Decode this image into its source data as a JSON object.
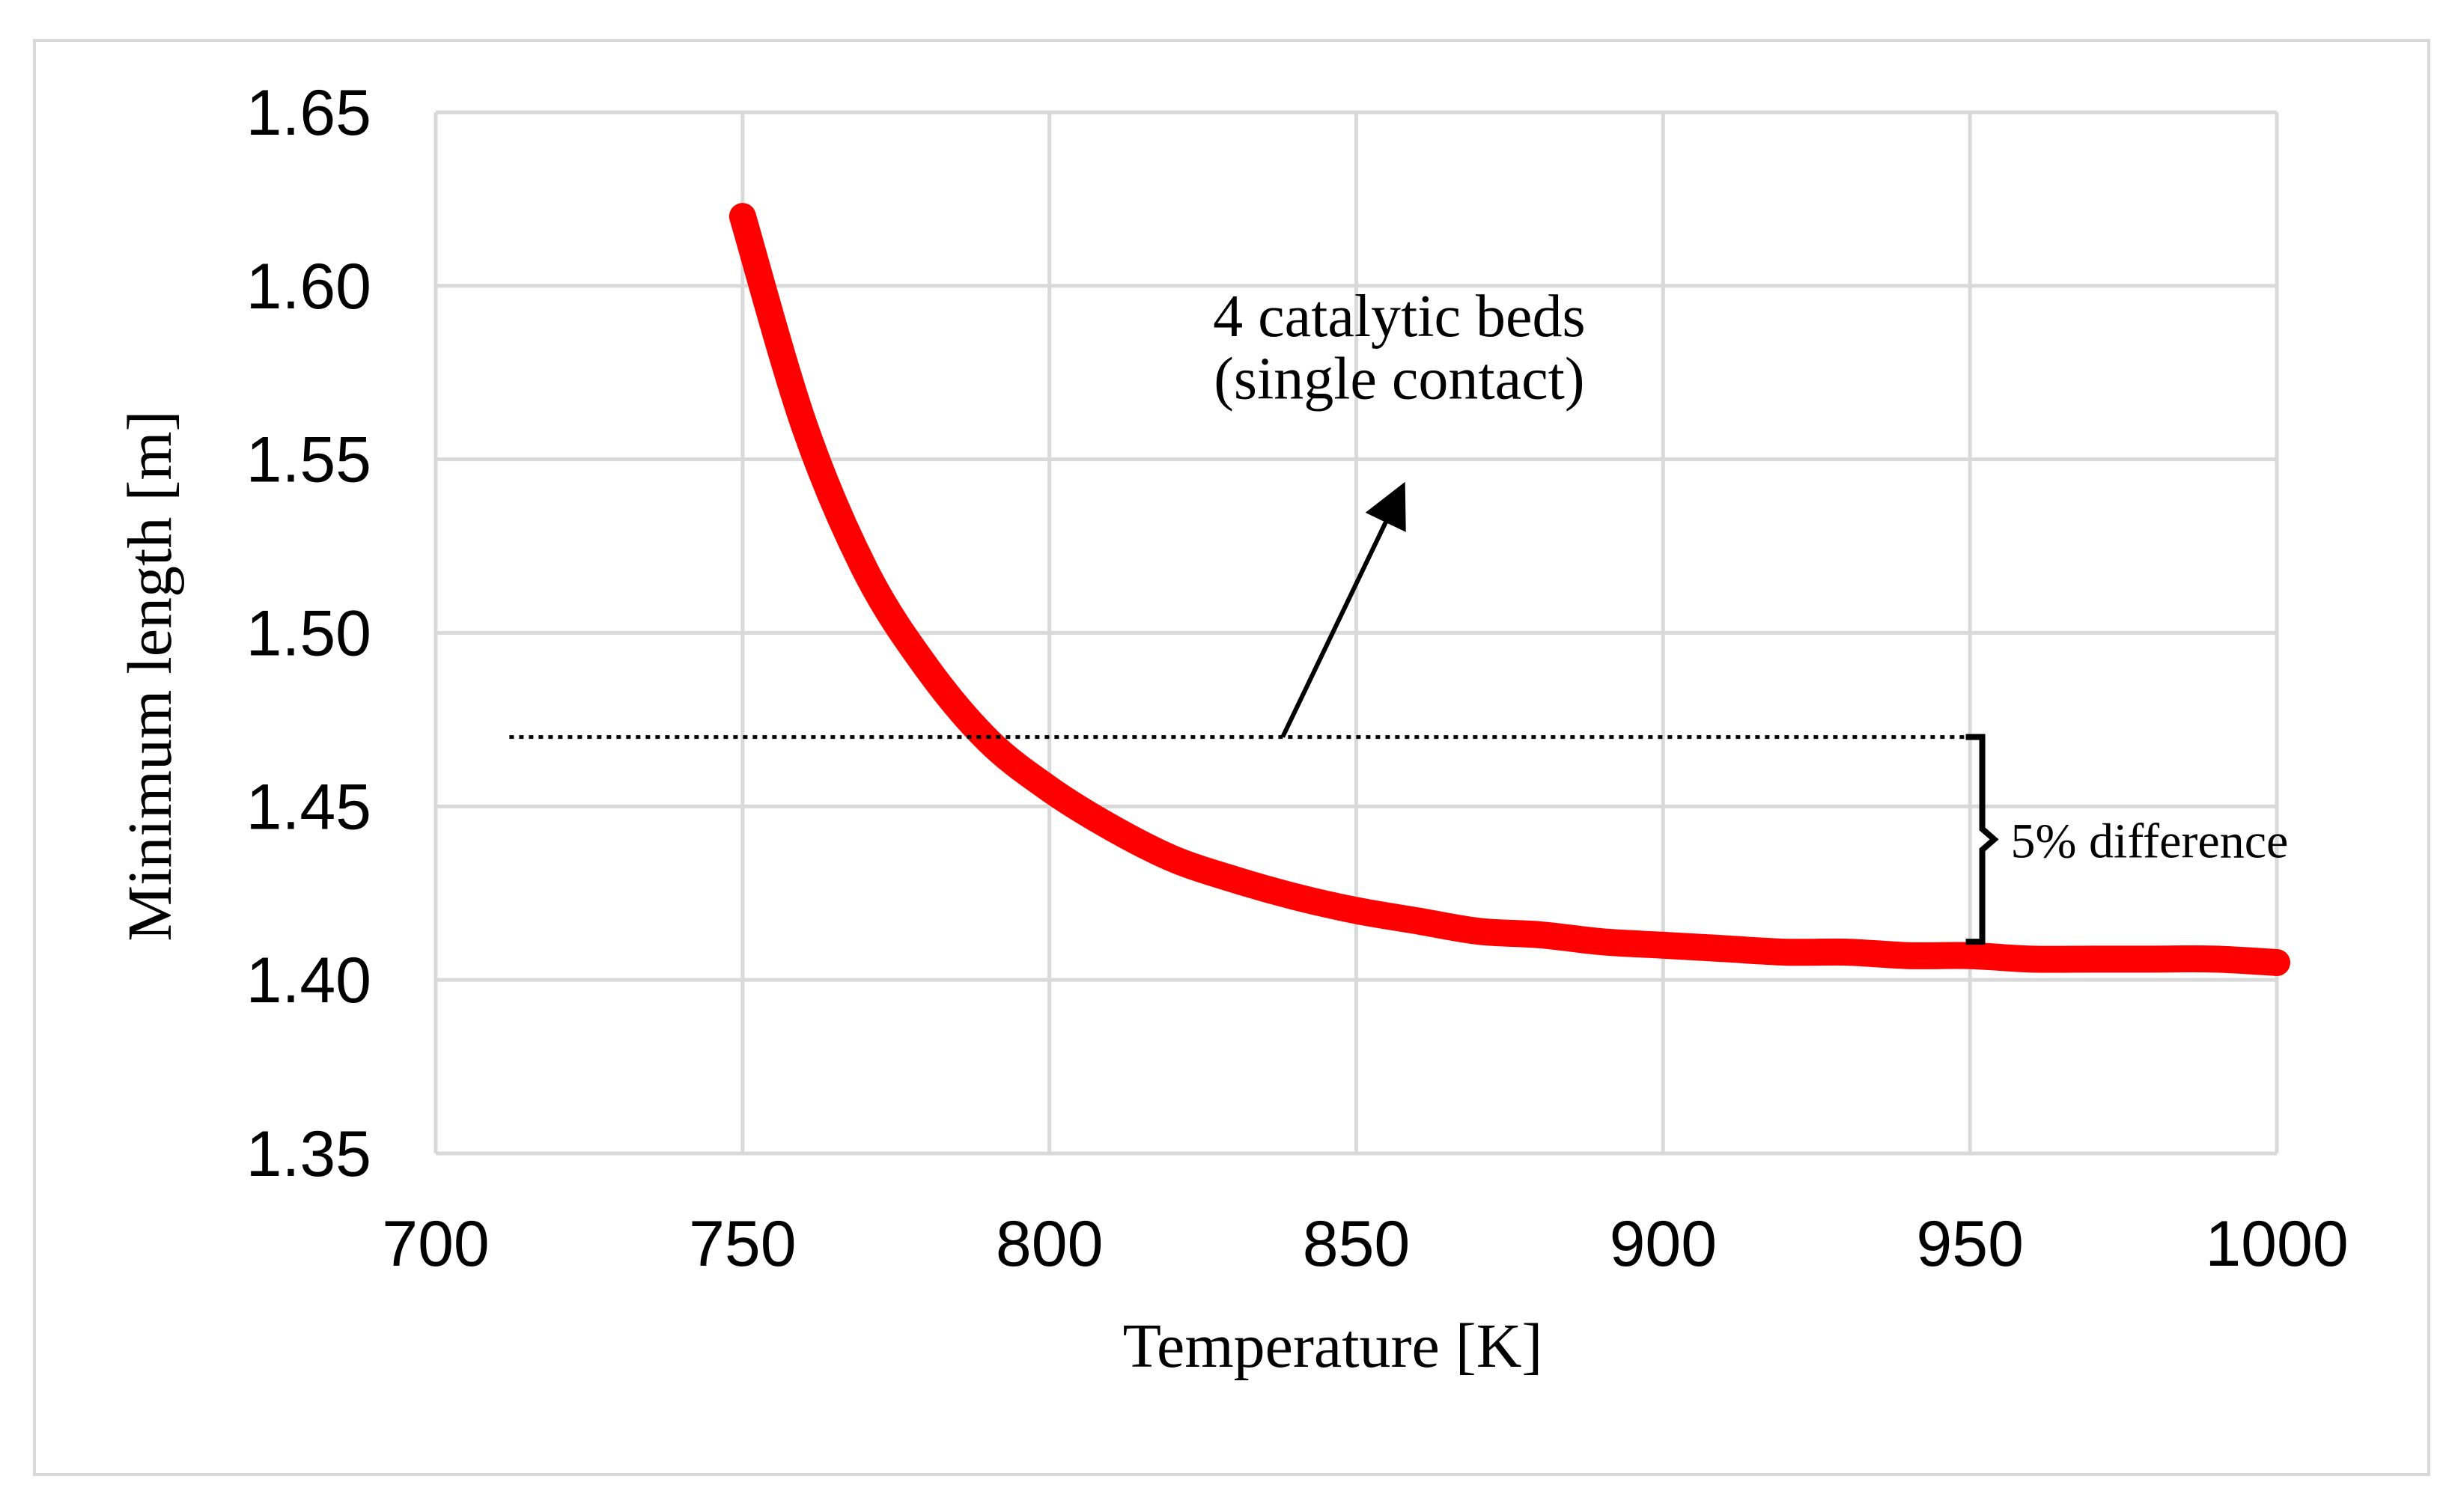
{
  "chart_data": {
    "type": "line",
    "title": "",
    "xlabel": "Temperature [K]",
    "ylabel": "Minimum length [m]",
    "xlim": [
      700,
      1000
    ],
    "ylim": [
      1.35,
      1.65
    ],
    "xticks": [
      700,
      750,
      800,
      850,
      900,
      950,
      1000
    ],
    "yticks": [
      1.35,
      1.4,
      1.45,
      1.5,
      1.55,
      1.6,
      1.65
    ],
    "ytick_labels": [
      "1.35",
      "1.40",
      "1.45",
      "1.50",
      "1.55",
      "1.60",
      "1.65"
    ],
    "grid": true,
    "series": [
      {
        "name": "Minimum length",
        "color": "#ff0000",
        "x": [
          750,
          760,
          770,
          780,
          790,
          800,
          810,
          820,
          830,
          840,
          850,
          860,
          870,
          880,
          890,
          900,
          910,
          920,
          930,
          940,
          950,
          960,
          970,
          980,
          990,
          1000
        ],
        "y": [
          1.62,
          1.56,
          1.518,
          1.49,
          1.469,
          1.455,
          1.444,
          1.435,
          1.429,
          1.424,
          1.42,
          1.417,
          1.414,
          1.413,
          1.411,
          1.41,
          1.409,
          1.408,
          1.408,
          1.407,
          1.407,
          1.406,
          1.406,
          1.406,
          1.406,
          1.405
        ]
      }
    ],
    "reference_line": {
      "y": 1.47,
      "x_start": 712,
      "x_end": 950,
      "style": "dotted"
    },
    "annotations": [
      {
        "lines": [
          "4 catalytic beds",
          "(single contact)"
        ],
        "arrow_from": [
          838,
          1.47
        ],
        "arrow_to": [
          857,
          1.54
        ]
      },
      {
        "text": "5% difference",
        "bracket_x": 952,
        "bracket_y": [
          1.47,
          1.411
        ]
      }
    ]
  }
}
